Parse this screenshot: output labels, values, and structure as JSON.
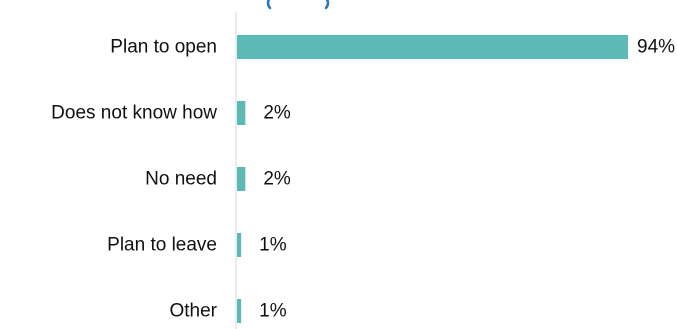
{
  "colors": {
    "bar": "#5bbab5",
    "axis": "#d9d9d9",
    "text": "#111111",
    "cropped_title": "#2e75b6"
  },
  "chart_data": {
    "type": "bar",
    "orientation": "horizontal",
    "categories": [
      "Plan to open",
      "Does not know how",
      "No need",
      "Plan to leave",
      "Other"
    ],
    "values": [
      94,
      2,
      2,
      1,
      1
    ],
    "value_labels": [
      "94%",
      "2%",
      "2%",
      "1%",
      "1%"
    ],
    "xlim": [
      0,
      100
    ],
    "grid": false,
    "legend": "none"
  }
}
